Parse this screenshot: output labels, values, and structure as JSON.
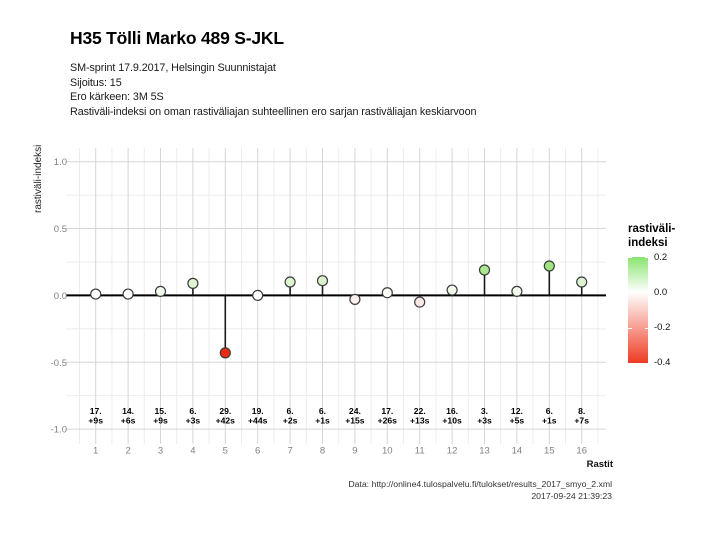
{
  "header": {
    "title": "H35 Tölli Marko 489 S-JKL",
    "subtitle_lines": [
      "SM-sprint 17.9.2017, Helsingin Suunnistajat",
      "Sijoitus: 15",
      "Ero kärkeen: 3M 5S",
      "Rastiväli-indeksi on oman rastiväliajan suhteellinen ero sarjan rastiväliajan keskiarvoon"
    ]
  },
  "chart_data": {
    "type": "scatter",
    "variant": "lollipop",
    "title": "H35 Tölli Marko 489 S-JKL",
    "xlabel": "Rastit",
    "ylabel": "rastiväli-indeksi",
    "x": [
      1,
      2,
      3,
      4,
      5,
      6,
      7,
      8,
      9,
      10,
      11,
      12,
      13,
      14,
      15,
      16
    ],
    "x_tick_labels": [
      "1",
      "2",
      "3",
      "4",
      "5",
      "6",
      "7",
      "8",
      "9",
      "10",
      "11",
      "12",
      "13",
      "14",
      "15",
      "16"
    ],
    "values": [
      0.01,
      0.01,
      0.03,
      0.09,
      -0.43,
      0.0,
      0.1,
      0.11,
      -0.03,
      0.02,
      -0.05,
      0.04,
      0.19,
      0.03,
      0.22,
      0.1
    ],
    "point_fills": [
      "#fefefd",
      "#fefefd",
      "#f2faee",
      "#dff5d3",
      "#ee2c16",
      "#ffffff",
      "#dcf4cf",
      "#d8f3ca",
      "#fcefeb",
      "#fafdf8",
      "#f9e8e3",
      "#f0f9eb",
      "#aae890",
      "#f2faee",
      "#9ce57f",
      "#dcf4cf"
    ],
    "split_labels": [
      {
        "rank": "17.",
        "diff": "+9s"
      },
      {
        "rank": "14.",
        "diff": "+6s"
      },
      {
        "rank": "15.",
        "diff": "+9s"
      },
      {
        "rank": "6.",
        "diff": "+3s"
      },
      {
        "rank": "29.",
        "diff": "+42s"
      },
      {
        "rank": "19.",
        "diff": "+44s"
      },
      {
        "rank": "6.",
        "diff": "+2s"
      },
      {
        "rank": "6.",
        "diff": "+1s"
      },
      {
        "rank": "24.",
        "diff": "+15s"
      },
      {
        "rank": "17.",
        "diff": "+26s"
      },
      {
        "rank": "22.",
        "diff": "+13s"
      },
      {
        "rank": "16.",
        "diff": "+10s"
      },
      {
        "rank": "3.",
        "diff": "+3s"
      },
      {
        "rank": "12.",
        "diff": "+5s"
      },
      {
        "rank": "6.",
        "diff": "+1s"
      },
      {
        "rank": "8.",
        "diff": "+7s"
      }
    ],
    "ylim": [
      -1,
      1
    ],
    "yticks": [
      1.0,
      0.5,
      0.0,
      -0.5,
      -1.0
    ],
    "ytick_labels": [
      "1.0",
      "0.5",
      "0.0",
      "-0.5",
      "-1.0"
    ],
    "yminor": [
      0.75,
      0.25,
      -0.25,
      -0.75
    ],
    "grid": {
      "major_color": "#d6d6d6",
      "minor_color": "#ececec",
      "on": true
    },
    "zero_line_color": "#000000",
    "stem_color": "#1a1a1a",
    "point_stroke": "#3c3c3c",
    "legend": {
      "position": "right",
      "title_lines": [
        "rastiväli-",
        "indeksi"
      ],
      "max": 0.2,
      "min": -0.4,
      "ticks": [
        0.2,
        0.0,
        -0.2,
        -0.4
      ],
      "tick_labels": [
        "0.2",
        "0.0",
        "-0.2",
        "-0.4"
      ],
      "color_high": "#8ae470",
      "color_mid": "#ffffff",
      "color_low": "#ee3b22"
    }
  },
  "footer": {
    "source": "Data: http://online4.tulospalvelu.fi/tulokset/results_2017_smyo_2.xml",
    "timestamp": "2017-09-24 21:39:23"
  }
}
